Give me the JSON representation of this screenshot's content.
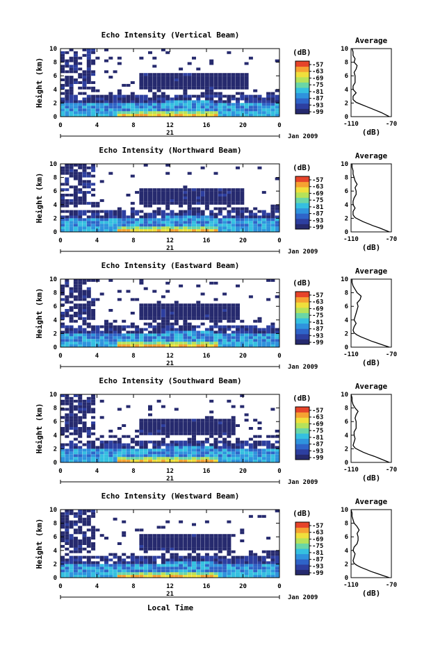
{
  "figure": {
    "xlabel": "Local Time",
    "ylabel": "Height (km)",
    "date_label": "Jan 2009",
    "day_label": "21",
    "colorbar_unit": "(dB)",
    "avg_title": "Average",
    "avg_xlabel": "(dB)"
  },
  "chart_data": [
    {
      "type": "heatmap",
      "title": "Echo Intensity (Vertical Beam)",
      "xlabel": "",
      "ylabel": "Height (km)",
      "xlim": [
        0,
        24
      ],
      "ylim": [
        0,
        10
      ],
      "xticks": [
        "0",
        "4",
        "8",
        "12",
        "16",
        "20",
        "0"
      ],
      "yticks": [
        "0",
        "2",
        "4",
        "6",
        "8",
        "10"
      ],
      "colorbar": {
        "label": "(dB)",
        "ticks": [
          -57,
          -63,
          -69,
          -75,
          -81,
          -87,
          -93,
          -99
        ]
      },
      "average": {
        "title": "Average",
        "xlabel": "(dB)",
        "xlim": [
          -110,
          -70
        ],
        "xticks": [
          "-110",
          "-70"
        ],
        "yticks": [
          "0",
          "2",
          "4",
          "6",
          "8",
          "10"
        ],
        "points": [
          [
            -72,
            0
          ],
          [
            -76,
            0.3
          ],
          [
            -80,
            0.6
          ],
          [
            -85,
            0.9
          ],
          [
            -90,
            1.2
          ],
          [
            -95,
            1.5
          ],
          [
            -100,
            1.8
          ],
          [
            -105,
            2.1
          ],
          [
            -108,
            2.5
          ],
          [
            -108,
            3
          ],
          [
            -105,
            3.5
          ],
          [
            -108,
            4
          ],
          [
            -108,
            4.5
          ],
          [
            -106,
            5
          ],
          [
            -106,
            5.5
          ],
          [
            -106,
            6
          ],
          [
            -107,
            6.5
          ],
          [
            -105,
            7
          ],
          [
            -104,
            7.5
          ],
          [
            -107,
            8
          ],
          [
            -106,
            8.5
          ],
          [
            -108,
            9
          ],
          [
            -108,
            9.5
          ],
          [
            -109,
            10
          ]
        ]
      }
    },
    {
      "type": "heatmap",
      "title": "Echo Intensity (Northward Beam)",
      "xlabel": "",
      "ylabel": "Height (km)",
      "xlim": [
        0,
        24
      ],
      "ylim": [
        0,
        10
      ],
      "xticks": [
        "0",
        "4",
        "8",
        "12",
        "16",
        "20",
        "0"
      ],
      "yticks": [
        "0",
        "2",
        "4",
        "6",
        "8",
        "10"
      ],
      "colorbar": {
        "label": "(dB)",
        "ticks": [
          -57,
          -63,
          -69,
          -75,
          -81,
          -87,
          -93,
          -99
        ]
      },
      "average": {
        "title": "Average",
        "xlabel": "(dB)",
        "xlim": [
          -110,
          -70
        ],
        "xticks": [
          "-110",
          "-70"
        ],
        "yticks": [
          "0",
          "2",
          "4",
          "6",
          "8",
          "10"
        ],
        "points": [
          [
            -72,
            0
          ],
          [
            -77,
            0.3
          ],
          [
            -82,
            0.6
          ],
          [
            -88,
            0.9
          ],
          [
            -93,
            1.2
          ],
          [
            -98,
            1.5
          ],
          [
            -102,
            1.8
          ],
          [
            -106,
            2.1
          ],
          [
            -108,
            2.5
          ],
          [
            -108,
            3
          ],
          [
            -106,
            3.5
          ],
          [
            -108,
            4
          ],
          [
            -108,
            4.5
          ],
          [
            -107,
            5
          ],
          [
            -105,
            5.5
          ],
          [
            -105,
            6
          ],
          [
            -106,
            6.5
          ],
          [
            -104,
            7
          ],
          [
            -106,
            7.5
          ],
          [
            -107,
            8
          ],
          [
            -108,
            8.5
          ],
          [
            -108,
            9
          ],
          [
            -109,
            9.5
          ],
          [
            -109,
            10
          ]
        ]
      }
    },
    {
      "type": "heatmap",
      "title": "Echo Intensity (Eastward Beam)",
      "xlabel": "",
      "ylabel": "Height (km)",
      "xlim": [
        0,
        24
      ],
      "ylim": [
        0,
        10
      ],
      "xticks": [
        "0",
        "4",
        "8",
        "12",
        "16",
        "20",
        "0"
      ],
      "yticks": [
        "0",
        "2",
        "4",
        "6",
        "8",
        "10"
      ],
      "colorbar": {
        "label": "(dB)",
        "ticks": [
          -57,
          -63,
          -69,
          -75,
          -81,
          -87,
          -93,
          -99
        ]
      },
      "average": {
        "title": "Average",
        "xlabel": "(dB)",
        "xlim": [
          -110,
          -70
        ],
        "xticks": [
          "-110",
          "-70"
        ],
        "yticks": [
          "0",
          "2",
          "4",
          "6",
          "8",
          "10"
        ],
        "points": [
          [
            -72,
            0
          ],
          [
            -78,
            0.3
          ],
          [
            -84,
            0.6
          ],
          [
            -90,
            0.9
          ],
          [
            -95,
            1.2
          ],
          [
            -100,
            1.5
          ],
          [
            -104,
            1.8
          ],
          [
            -107,
            2.1
          ],
          [
            -108,
            2.5
          ],
          [
            -107,
            3
          ],
          [
            -105,
            3.5
          ],
          [
            -107,
            4
          ],
          [
            -106,
            4.5
          ],
          [
            -105,
            5
          ],
          [
            -104,
            5.5
          ],
          [
            -103,
            6
          ],
          [
            -104,
            6.5
          ],
          [
            -101,
            7
          ],
          [
            -100,
            7.5
          ],
          [
            -104,
            8
          ],
          [
            -106,
            8.5
          ],
          [
            -108,
            9
          ],
          [
            -109,
            9.5
          ],
          [
            -109,
            10
          ]
        ]
      }
    },
    {
      "type": "heatmap",
      "title": "Echo Intensity (Southward Beam)",
      "xlabel": "",
      "ylabel": "Height (km)",
      "xlim": [
        0,
        24
      ],
      "ylim": [
        0,
        10
      ],
      "xticks": [
        "0",
        "4",
        "8",
        "12",
        "16",
        "20",
        "0"
      ],
      "yticks": [
        "0",
        "2",
        "4",
        "6",
        "8",
        "10"
      ],
      "colorbar": {
        "label": "(dB)",
        "ticks": [
          -57,
          -63,
          -69,
          -75,
          -81,
          -87,
          -93,
          -99
        ]
      },
      "average": {
        "title": "Average",
        "xlabel": "(dB)",
        "xlim": [
          -110,
          -70
        ],
        "xticks": [
          "-110",
          "-70"
        ],
        "yticks": [
          "0",
          "2",
          "4",
          "6",
          "8",
          "10"
        ],
        "points": [
          [
            -72,
            0
          ],
          [
            -77,
            0.3
          ],
          [
            -82,
            0.6
          ],
          [
            -87,
            0.9
          ],
          [
            -93,
            1.2
          ],
          [
            -98,
            1.5
          ],
          [
            -102,
            1.8
          ],
          [
            -106,
            2.1
          ],
          [
            -108,
            2.5
          ],
          [
            -107,
            3
          ],
          [
            -106,
            3.5
          ],
          [
            -107,
            4
          ],
          [
            -107,
            4.5
          ],
          [
            -105,
            5
          ],
          [
            -105,
            5.5
          ],
          [
            -105,
            6
          ],
          [
            -106,
            6.5
          ],
          [
            -105,
            7
          ],
          [
            -103,
            7.5
          ],
          [
            -106,
            8
          ],
          [
            -108,
            8.5
          ],
          [
            -109,
            9
          ],
          [
            -109,
            9.5
          ],
          [
            -110,
            10
          ]
        ]
      }
    },
    {
      "type": "heatmap",
      "title": "Echo Intensity (Westward Beam)",
      "xlabel": "Local Time",
      "ylabel": "Height (km)",
      "xlim": [
        0,
        24
      ],
      "ylim": [
        0,
        10
      ],
      "xticks": [
        "0",
        "4",
        "8",
        "12",
        "16",
        "20",
        "0"
      ],
      "yticks": [
        "0",
        "2",
        "4",
        "6",
        "8",
        "10"
      ],
      "colorbar": {
        "label": "(dB)",
        "ticks": [
          -57,
          -63,
          -69,
          -75,
          -81,
          -87,
          -93,
          -99
        ]
      },
      "average": {
        "title": "Average",
        "xlabel": "(dB)",
        "xlim": [
          -110,
          -70
        ],
        "xticks": [
          "-110",
          "-70"
        ],
        "yticks": [
          "0",
          "2",
          "4",
          "6",
          "8",
          "10"
        ],
        "points": [
          [
            -72,
            0
          ],
          [
            -78,
            0.3
          ],
          [
            -84,
            0.6
          ],
          [
            -90,
            0.9
          ],
          [
            -95,
            1.2
          ],
          [
            -100,
            1.5
          ],
          [
            -104,
            1.8
          ],
          [
            -107,
            2.1
          ],
          [
            -108,
            2.5
          ],
          [
            -107,
            3
          ],
          [
            -106,
            3.5
          ],
          [
            -108,
            4
          ],
          [
            -107,
            4.5
          ],
          [
            -104,
            5
          ],
          [
            -103,
            5.5
          ],
          [
            -103,
            6
          ],
          [
            -104,
            6.5
          ],
          [
            -102,
            7
          ],
          [
            -104,
            7.5
          ],
          [
            -107,
            8
          ],
          [
            -108,
            8.5
          ],
          [
            -109,
            9
          ],
          [
            -109,
            9.5
          ],
          [
            -110,
            10
          ]
        ]
      }
    }
  ],
  "colors": [
    "#262a6e",
    "#2d3fa0",
    "#2f64c8",
    "#2f93dd",
    "#35c0e0",
    "#6ad6a6",
    "#b6e25a",
    "#f0df3c",
    "#f6a232",
    "#e6442a"
  ]
}
